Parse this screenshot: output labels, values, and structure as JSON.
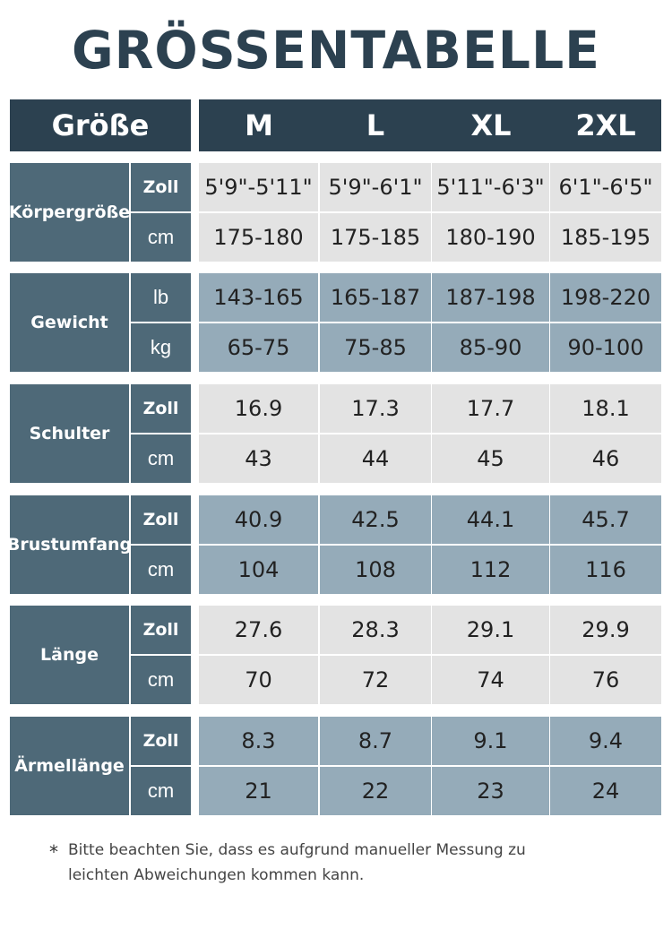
{
  "title": "GRÖSSENTABELLE",
  "header": {
    "size_label": "Größe",
    "columns": [
      "M",
      "L",
      "XL",
      "2XL"
    ]
  },
  "groups": [
    {
      "category": "Körpergröße",
      "rows": [
        {
          "unit": "Zoll",
          "values": [
            "5'9\"-5'11\"",
            "5'9\"-6'1\"",
            "5'11\"-6'3\"",
            "6'1\"-6'5\""
          ]
        },
        {
          "unit": "cm",
          "values": [
            "175-180",
            "175-185",
            "180-190",
            "185-195"
          ]
        }
      ]
    },
    {
      "category": "Gewicht",
      "rows": [
        {
          "unit": "lb",
          "values": [
            "143-165",
            "165-187",
            "187-198",
            "198-220"
          ]
        },
        {
          "unit": "kg",
          "values": [
            "65-75",
            "75-85",
            "85-90",
            "90-100"
          ]
        }
      ]
    },
    {
      "category": "Schulter",
      "rows": [
        {
          "unit": "Zoll",
          "values": [
            "16.9",
            "17.3",
            "17.7",
            "18.1"
          ]
        },
        {
          "unit": "cm",
          "values": [
            "43",
            "44",
            "45",
            "46"
          ]
        }
      ]
    },
    {
      "category": "Brustumfang",
      "rows": [
        {
          "unit": "Zoll",
          "values": [
            "40.9",
            "42.5",
            "44.1",
            "45.7"
          ]
        },
        {
          "unit": "cm",
          "values": [
            "104",
            "108",
            "112",
            "116"
          ]
        }
      ]
    },
    {
      "category": "Länge",
      "rows": [
        {
          "unit": "Zoll",
          "values": [
            "27.6",
            "28.3",
            "29.1",
            "29.9"
          ]
        },
        {
          "unit": "cm",
          "values": [
            "70",
            "72",
            "74",
            "76"
          ]
        }
      ]
    },
    {
      "category": "Ärmellänge",
      "rows": [
        {
          "unit": "Zoll",
          "values": [
            "8.3",
            "8.7",
            "9.1",
            "9.4"
          ]
        },
        {
          "unit": "cm",
          "values": [
            "21",
            "22",
            "23",
            "24"
          ]
        }
      ]
    }
  ],
  "note": {
    "symbol": "*",
    "text": "Bitte beachten Sie, dass es aufgrund manueller Messung zu leichten Abweichungen kommen kann."
  },
  "colors": {
    "dark": "#2c4150",
    "category": "#4e6978",
    "light_row": "#e3e3e3",
    "blue_row": "#95abb9"
  }
}
